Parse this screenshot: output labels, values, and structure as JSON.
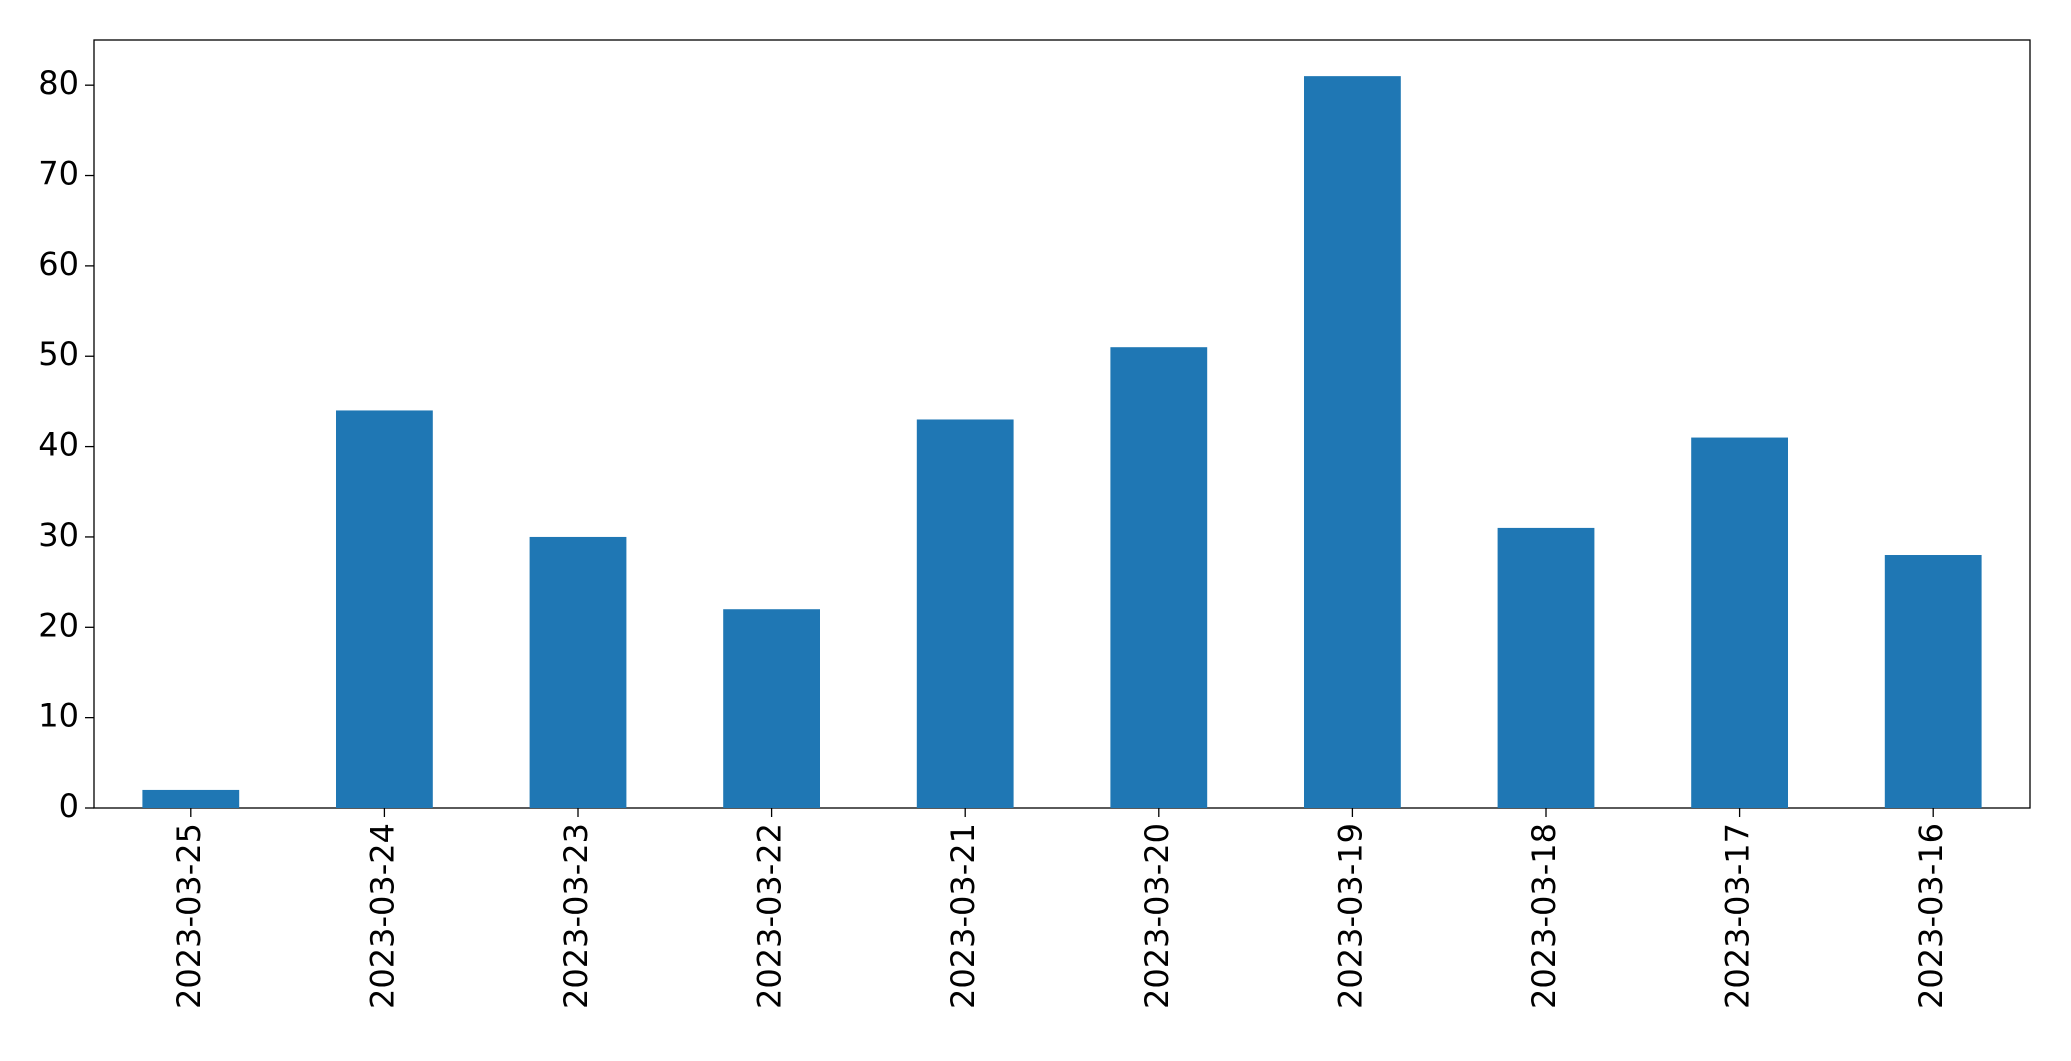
{
  "chart_data": {
    "type": "bar",
    "categories": [
      "2023-03-25",
      "2023-03-24",
      "2023-03-23",
      "2023-03-22",
      "2023-03-21",
      "2023-03-20",
      "2023-03-19",
      "2023-03-18",
      "2023-03-17",
      "2023-03-16"
    ],
    "values": [
      2,
      44,
      30,
      22,
      43,
      51,
      81,
      31,
      41,
      28
    ],
    "color": "#1f77b4",
    "ylim": [
      0,
      85
    ],
    "yticks": [
      0,
      10,
      20,
      30,
      40,
      50,
      60,
      70,
      80
    ],
    "grid": false
  }
}
